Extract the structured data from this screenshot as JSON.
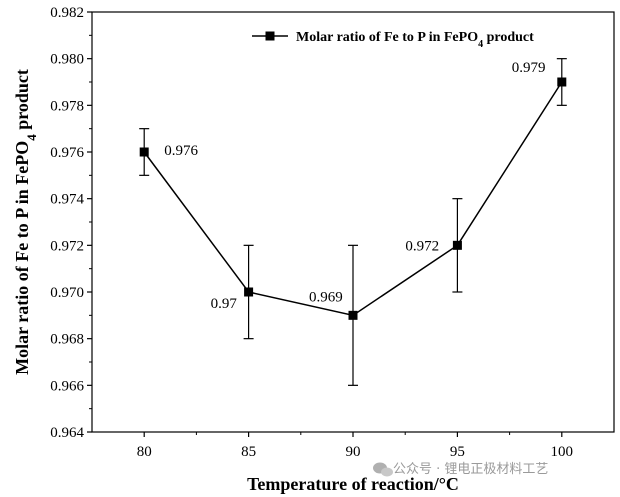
{
  "chart_data": {
    "type": "line",
    "x": [
      80,
      85,
      90,
      95,
      100
    ],
    "series": [
      {
        "name": "Molar ratio of Fe to P in FePO4 product",
        "values": [
          0.976,
          0.97,
          0.969,
          0.972,
          0.979
        ],
        "error_upper": [
          0.977,
          0.972,
          0.972,
          0.974,
          0.98
        ],
        "error_lower": [
          0.975,
          0.968,
          0.966,
          0.97,
          0.978
        ],
        "data_labels": [
          "0.976",
          "0.97",
          "0.969",
          "0.972",
          "0.979"
        ],
        "color": "#000000",
        "marker": "square"
      }
    ],
    "xlabel": "Temperature of reaction/°C",
    "ylabel": "Molar ratio of Fe to P in FePO4 product",
    "x_ticks": [
      "80",
      "85",
      "90",
      "95",
      "100"
    ],
    "y_ticks": [
      "0.964",
      "0.966",
      "0.968",
      "0.970",
      "0.972",
      "0.974",
      "0.976",
      "0.978",
      "0.980",
      "0.982"
    ],
    "xlim": [
      77.5,
      102.5
    ],
    "ylim": [
      0.964,
      0.982
    ],
    "grid": false,
    "legend_position": "top-right"
  },
  "watermark": {
    "text": "公众号 · 锂电正极材料工艺"
  }
}
